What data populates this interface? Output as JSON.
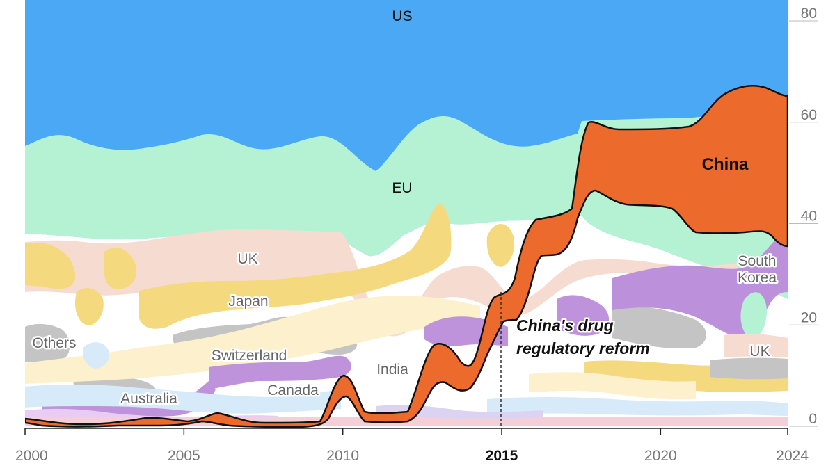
{
  "chart_data": {
    "type": "area",
    "title": "",
    "xlabel": "",
    "ylabel": "",
    "xlim": [
      2000,
      2024
    ],
    "ylim": [
      0,
      80
    ],
    "x_ticks": [
      "2000",
      "2005",
      "2010",
      "2015",
      "2020",
      "2024"
    ],
    "y_ticks": [
      "0",
      "20",
      "40",
      "60",
      "80"
    ],
    "highlight_tick": "2015",
    "legend": "none (labels placed on streams)",
    "series_labels": {
      "us": "US",
      "eu": "EU",
      "china": "China",
      "uk": "UK",
      "uk2": "UK",
      "japan": "Japan",
      "others": "Others",
      "switzerland": "Switzerland",
      "india": "India",
      "canada": "Canada",
      "australia": "Australia",
      "south_korea": "South Korea"
    },
    "colors": {
      "us": "#4aa8f5",
      "eu": "#b5f2d4",
      "china": "#ec6a2b",
      "uk": "#f6dcd0",
      "japan": "#f4d97e",
      "others": "#c4c4c4",
      "switzerland": "#fdf0cc",
      "india": "#bf92dc",
      "canada": "#d6eafa",
      "australia": "#e9ccf3",
      "south_korea": "#bd90db"
    },
    "series": [
      {
        "name": "China",
        "x": [
          2000,
          2001,
          2002,
          2003,
          2004,
          2005,
          2006,
          2007,
          2008,
          2009,
          2010,
          2011,
          2012,
          2013,
          2014,
          2015,
          2016,
          2017,
          2018,
          2019,
          2020,
          2021,
          2022,
          2023,
          2024
        ],
        "bottom": [
          0.5,
          0,
          0,
          0.2,
          0.8,
          0.2,
          1,
          0.3,
          0.3,
          0.3,
          8,
          2,
          2.5,
          12,
          12,
          25,
          35,
          35,
          48,
          43,
          43.5,
          40,
          38,
          37,
          36
        ],
        "top": [
          1,
          0.3,
          0.3,
          0.5,
          1.6,
          1,
          3,
          0.8,
          0.5,
          1,
          10,
          3.5,
          4,
          17,
          18,
          28,
          42,
          45,
          60,
          60,
          61,
          62,
          66,
          65,
          64
        ]
      },
      {
        "name": "US",
        "x": [
          2000,
          2002,
          2004,
          2006,
          2008,
          2010,
          2011,
          2012,
          2013,
          2014,
          2015,
          2016,
          2017,
          2018,
          2020,
          2022,
          2024
        ],
        "bottom": [
          56,
          55,
          56,
          58,
          57,
          54,
          51,
          57,
          61,
          58,
          56,
          55,
          57,
          60,
          61,
          62,
          64
        ],
        "top": [
          80,
          80,
          80,
          80,
          80,
          80,
          80,
          80,
          80,
          80,
          80,
          80,
          80,
          80,
          80,
          80,
          80
        ]
      },
      {
        "name": "EU",
        "x": [
          2000,
          2002,
          2004,
          2006,
          2008,
          2010,
          2011,
          2012,
          2013,
          2014,
          2015,
          2016,
          2017,
          2018,
          2020,
          2022,
          2024
        ],
        "bottom": [
          36,
          35,
          37,
          38,
          37,
          36,
          33,
          37,
          38,
          35,
          39,
          40,
          39,
          38,
          34,
          30,
          25
        ],
        "top": [
          56,
          55,
          56,
          58,
          57,
          54,
          51,
          57,
          61,
          58,
          56,
          55,
          57,
          60,
          61,
          62,
          64
        ]
      }
    ],
    "annotations": [
      {
        "text_line1": "China's drug",
        "text_line2": "regulatory reform",
        "x": 2015,
        "style": "dashed vertical line"
      }
    ]
  }
}
